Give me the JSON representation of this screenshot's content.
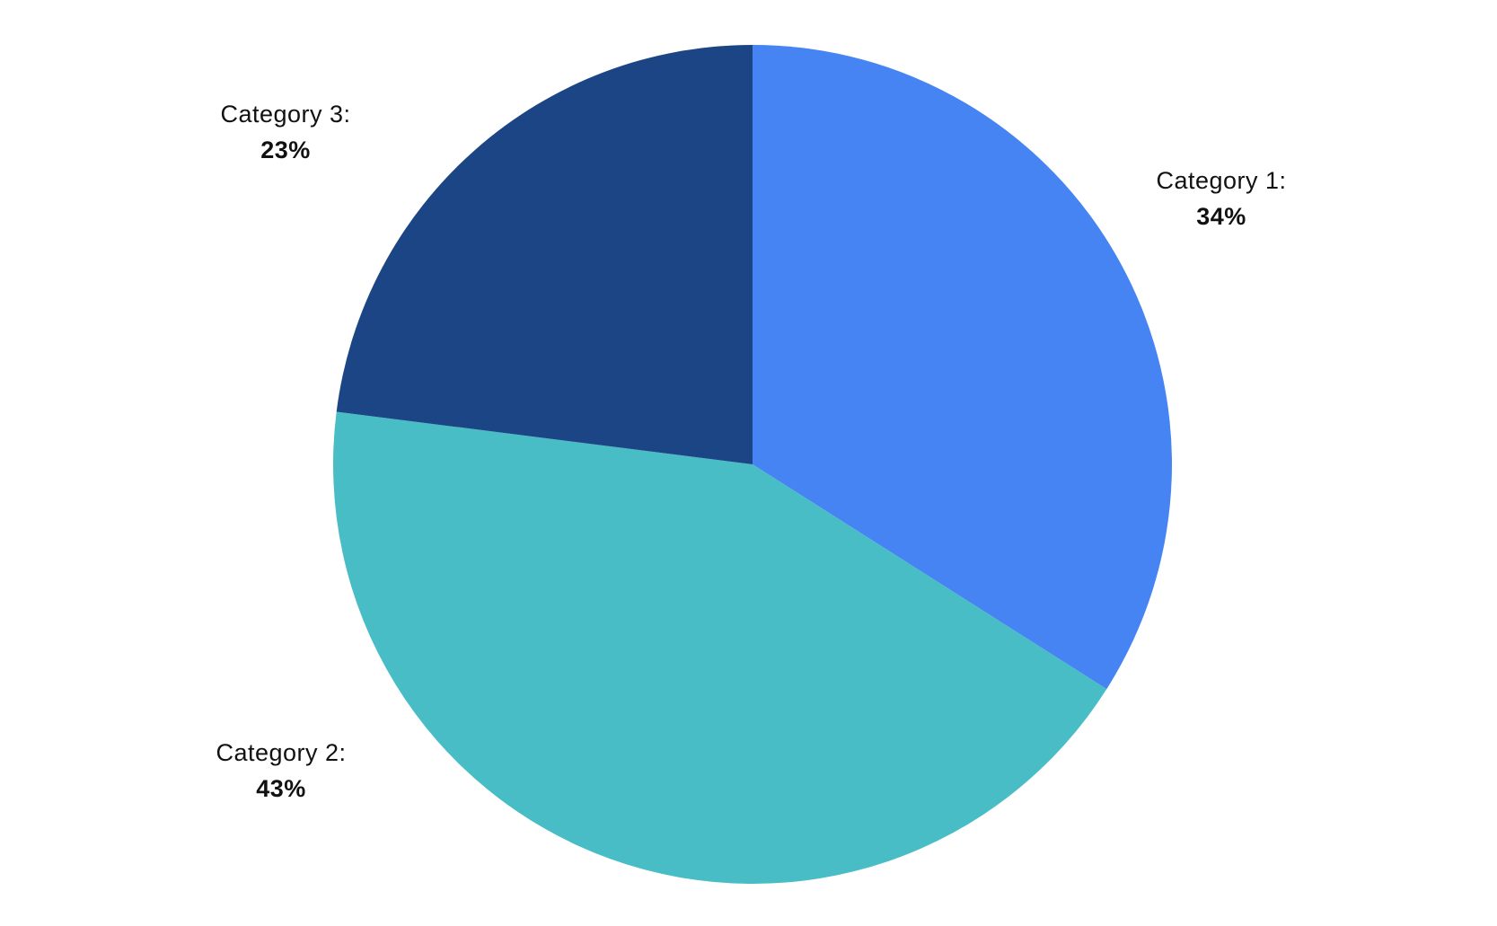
{
  "chart_data": {
    "type": "pie",
    "categories": [
      "Category 1:",
      "Category 2:",
      "Category 3:"
    ],
    "values": [
      34,
      43,
      23
    ],
    "value_labels": [
      "34%",
      "43%",
      "23%"
    ],
    "colors": [
      "#4584f2",
      "#48bdc6",
      "#1c4585"
    ]
  }
}
